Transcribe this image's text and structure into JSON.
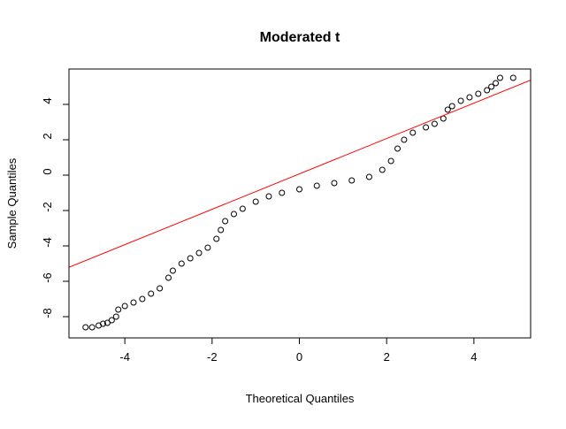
{
  "chart_data": {
    "type": "scatter",
    "title": "Moderated t",
    "x_label": "Theoretical Quantiles",
    "y_label": "Sample Quantiles",
    "xlim": [
      -5.28,
      5.3
    ],
    "ylim": [
      -9.2,
      6.0
    ],
    "xticks": [
      -4,
      -2,
      0,
      2,
      4
    ],
    "yticks": [
      -8,
      -6,
      -4,
      -2,
      0,
      2,
      4
    ],
    "series": [
      {
        "color": "#000000",
        "x": [
          -4.9,
          -4.75,
          -4.6,
          -4.5,
          -4.4,
          -4.3,
          -4.2,
          -4.15,
          -4.0,
          -3.8,
          -3.6,
          -3.4,
          -3.2,
          -3.0,
          -2.9,
          -2.7,
          -2.5,
          -2.3,
          -2.1,
          -1.9,
          -1.8,
          -1.7,
          -1.5,
          -1.3,
          -1.0,
          -0.7,
          -0.4,
          0,
          0.4,
          0.8,
          1.2,
          1.6,
          1.9,
          2.1,
          2.25,
          2.4,
          2.6,
          2.9,
          3.1,
          3.3,
          3.4,
          3.5,
          3.7,
          3.9,
          4.1,
          4.3,
          4.4,
          4.5,
          4.6,
          4.9
        ],
        "values": [
          -8.6,
          -8.6,
          -8.5,
          -8.4,
          -8.35,
          -8.2,
          -8.0,
          -7.6,
          -7.4,
          -7.2,
          -7.0,
          -6.7,
          -6.4,
          -5.8,
          -5.4,
          -5.0,
          -4.7,
          -4.4,
          -4.1,
          -3.6,
          -3.1,
          -2.6,
          -2.2,
          -1.9,
          -1.5,
          -1.2,
          -1.0,
          -0.8,
          -0.6,
          -0.45,
          -0.3,
          -0.1,
          0.3,
          0.8,
          1.5,
          2.0,
          2.4,
          2.7,
          2.9,
          3.2,
          3.7,
          3.9,
          4.2,
          4.4,
          4.6,
          4.8,
          5.0,
          5.2,
          5.5,
          5.5
        ]
      }
    ],
    "reference_line": {
      "intercept": 0.07,
      "slope": 1.0,
      "color": "#ff0000"
    }
  }
}
